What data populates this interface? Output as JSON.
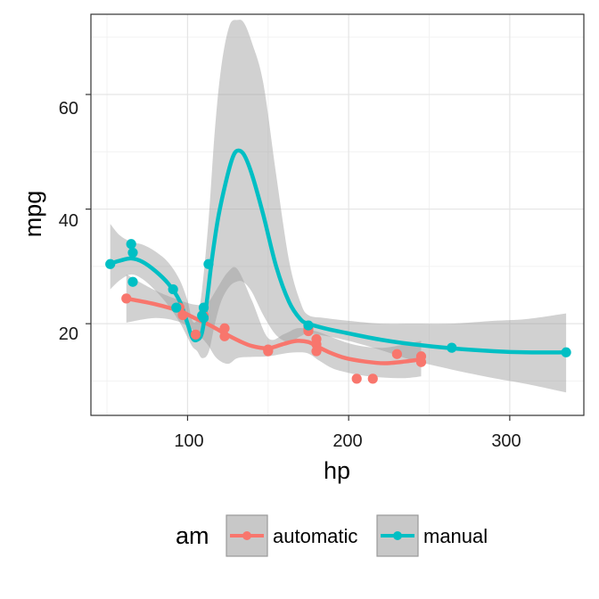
{
  "chart_data": {
    "type": "scatter",
    "title": "",
    "xlabel": "hp",
    "ylabel": "mpg",
    "xlim": [
      40,
      346
    ],
    "ylim": [
      4,
      74
    ],
    "x_ticks": [
      100,
      200,
      300
    ],
    "y_ticks": [
      20,
      40,
      60
    ],
    "x_tick_labels": [
      "100",
      "200",
      "300"
    ],
    "y_tick_labels": [
      "20",
      "40",
      "60"
    ],
    "grid": true,
    "legend": {
      "title": "am",
      "position": "bottom"
    },
    "series": [
      {
        "name": "automatic",
        "color": "#F8766D",
        "points": [
          [
            110,
            21.4
          ],
          [
            175,
            18.7
          ],
          [
            105,
            18.1
          ],
          [
            245,
            14.3
          ],
          [
            62,
            24.4
          ],
          [
            95,
            22.8
          ],
          [
            123,
            19.2
          ],
          [
            123,
            17.8
          ],
          [
            180,
            16.4
          ],
          [
            180,
            17.3
          ],
          [
            180,
            15.2
          ],
          [
            205,
            10.4
          ],
          [
            215,
            10.4
          ],
          [
            230,
            14.7
          ],
          [
            97,
            21.5
          ],
          [
            150,
            15.5
          ],
          [
            150,
            15.2
          ],
          [
            245,
            13.3
          ],
          [
            175,
            19.2
          ]
        ],
        "smooth": [
          [
            62,
            24.4
          ],
          [
            80,
            23.4
          ],
          [
            95,
            22.2
          ],
          [
            105,
            20.9
          ],
          [
            112,
            20.0
          ],
          [
            118,
            19.1
          ],
          [
            123,
            18.3
          ],
          [
            132,
            17.0
          ],
          [
            140,
            16.1
          ],
          [
            150,
            15.7
          ],
          [
            160,
            16.5
          ],
          [
            168,
            17.0
          ],
          [
            175,
            16.8
          ],
          [
            180,
            16.1
          ],
          [
            188,
            15.0
          ],
          [
            198,
            14.0
          ],
          [
            210,
            13.4
          ],
          [
            222,
            13.1
          ],
          [
            235,
            13.4
          ],
          [
            245,
            13.8
          ]
        ],
        "band": [
          [
            62,
            20.2,
            28.6
          ],
          [
            80,
            21.0,
            25.8
          ],
          [
            95,
            20.3,
            24.1
          ],
          [
            105,
            18.5,
            23.3
          ],
          [
            112,
            16.5,
            23.5
          ],
          [
            118,
            14.0,
            26.0
          ],
          [
            125,
            13.0,
            29.0
          ],
          [
            131,
            14.0,
            29.5
          ],
          [
            140,
            14.2,
            24.0
          ],
          [
            150,
            14.3,
            17.5
          ],
          [
            160,
            14.8,
            18.2
          ],
          [
            168,
            15.0,
            19.2
          ],
          [
            175,
            14.8,
            19.0
          ],
          [
            182,
            13.5,
            18.5
          ],
          [
            190,
            12.2,
            17.6
          ],
          [
            200,
            11.4,
            16.6
          ],
          [
            210,
            10.9,
            16.0
          ],
          [
            222,
            10.6,
            15.8
          ],
          [
            235,
            10.5,
            16.4
          ],
          [
            245,
            10.8,
            17.0
          ]
        ]
      },
      {
        "name": "manual",
        "color": "#00BFC4",
        "points": [
          [
            110,
            21.0
          ],
          [
            110,
            22.8
          ],
          [
            93,
            22.8
          ],
          [
            66,
            32.4
          ],
          [
            52,
            30.4
          ],
          [
            65,
            33.9
          ],
          [
            66,
            27.3
          ],
          [
            91,
            26.0
          ],
          [
            113,
            30.4
          ],
          [
            264,
            15.8
          ],
          [
            175,
            19.7
          ],
          [
            335,
            15.0
          ],
          [
            109,
            21.4
          ]
        ],
        "smooth": [
          [
            52,
            30.5
          ],
          [
            58,
            31.0
          ],
          [
            65,
            31.4
          ],
          [
            72,
            30.8
          ],
          [
            80,
            29.2
          ],
          [
            88,
            27.0
          ],
          [
            95,
            24.0
          ],
          [
            100,
            20.0
          ],
          [
            103,
            17.5
          ],
          [
            106,
            17.2
          ],
          [
            109,
            18.5
          ],
          [
            112,
            24.0
          ],
          [
            115,
            31.0
          ],
          [
            119,
            38.5
          ],
          [
            124,
            45.0
          ],
          [
            128,
            49.0
          ],
          [
            131,
            50.2
          ],
          [
            135,
            49.5
          ],
          [
            140,
            46.0
          ],
          [
            147,
            39.0
          ],
          [
            155,
            30.0
          ],
          [
            163,
            23.8
          ],
          [
            170,
            20.8
          ],
          [
            175,
            20.0
          ],
          [
            185,
            19.2
          ],
          [
            200,
            18.3
          ],
          [
            220,
            17.2
          ],
          [
            240,
            16.4
          ],
          [
            264,
            15.7
          ],
          [
            290,
            15.2
          ],
          [
            310,
            15.0
          ],
          [
            335,
            15.0
          ]
        ],
        "band": [
          [
            52,
            26.0,
            37.4
          ],
          [
            58,
            27.6,
            35.4
          ],
          [
            65,
            28.6,
            34.3
          ],
          [
            72,
            27.8,
            33.8
          ],
          [
            80,
            25.8,
            32.6
          ],
          [
            88,
            23.2,
            30.7
          ],
          [
            95,
            20.3,
            27.7
          ],
          [
            100,
            17.6,
            24.0
          ],
          [
            103,
            16.0,
            20.5
          ],
          [
            106,
            15.2,
            21.0
          ],
          [
            109,
            14.0,
            26.0
          ],
          [
            113,
            15.0,
            38.0
          ],
          [
            117,
            20.0,
            54.0
          ],
          [
            121,
            24.0,
            65.0
          ],
          [
            126,
            26.5,
            72.0
          ],
          [
            131,
            27.4,
            73.0
          ],
          [
            135,
            27.2,
            72.5
          ],
          [
            140,
            25.5,
            69.0
          ],
          [
            147,
            21.5,
            62.0
          ],
          [
            155,
            18.0,
            46.0
          ],
          [
            163,
            16.8,
            31.0
          ],
          [
            170,
            17.8,
            23.8
          ],
          [
            175,
            18.3,
            21.5
          ],
          [
            185,
            17.9,
            21.0
          ],
          [
            200,
            17.0,
            20.5
          ],
          [
            220,
            15.4,
            20.0
          ],
          [
            240,
            13.6,
            20.0
          ],
          [
            264,
            12.0,
            20.0
          ],
          [
            290,
            10.5,
            20.5
          ],
          [
            310,
            9.5,
            20.8
          ],
          [
            335,
            8.0,
            21.8
          ]
        ]
      }
    ]
  }
}
